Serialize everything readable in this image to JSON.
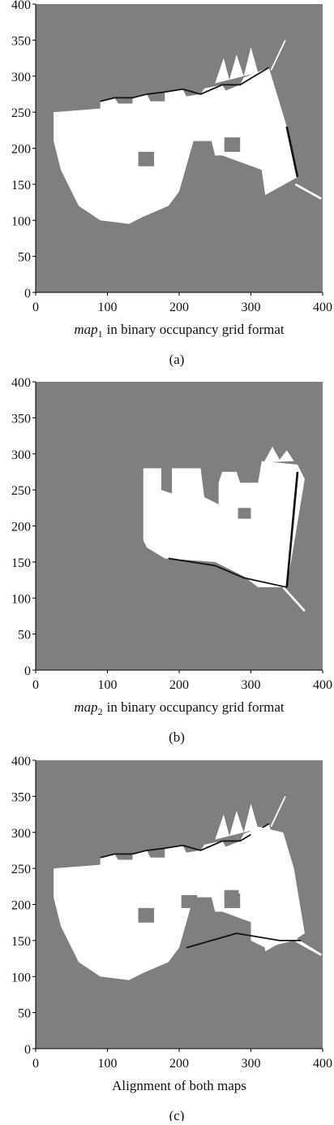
{
  "chart_data": [
    {
      "type": "occupancy-grid",
      "xlim": [
        0,
        400
      ],
      "ylim": [
        0,
        400
      ],
      "xticks": [
        0,
        100,
        200,
        300,
        400
      ],
      "yticks": [
        0,
        50,
        100,
        150,
        200,
        250,
        300,
        350,
        400
      ],
      "xlabel": {
        "italic": "map",
        "sub": "1",
        "rest": "in binary occupancy grid format"
      },
      "caption": "(a)"
    },
    {
      "type": "occupancy-grid",
      "xlim": [
        0,
        400
      ],
      "ylim": [
        0,
        400
      ],
      "xticks": [
        0,
        100,
        200,
        300,
        400
      ],
      "yticks": [
        0,
        50,
        100,
        150,
        200,
        250,
        300,
        350,
        400
      ],
      "xlabel": {
        "italic": "map",
        "sub": "2",
        "rest": "in binary occupancy grid format"
      },
      "caption": "(b)"
    },
    {
      "type": "occupancy-grid",
      "xlim": [
        0,
        400
      ],
      "ylim": [
        0,
        400
      ],
      "xticks": [
        0,
        100,
        200,
        300,
        400
      ],
      "yticks": [
        0,
        50,
        100,
        150,
        200,
        250,
        300,
        350,
        400
      ],
      "xlabel": "Alignment of both maps",
      "caption": "(c)"
    }
  ]
}
